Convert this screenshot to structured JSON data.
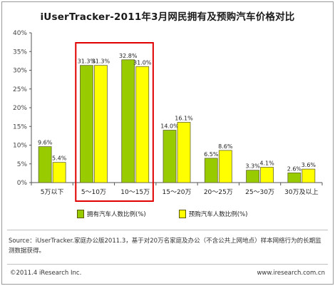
{
  "title": "iUserTracker-2011年3月网民拥有及预购汽车价格对比",
  "chart_data": {
    "type": "bar",
    "title": "iUserTracker-2011年3月网民拥有及预购汽车价格对比",
    "categories": [
      "5万以下",
      "5～10万",
      "10～15万",
      "15～20万",
      "20～25万",
      "25～30万",
      "30万及以上"
    ],
    "series": [
      {
        "name": "拥有汽车人数比例(%)",
        "color": "#99cc00",
        "values": [
          9.6,
          31.3,
          32.8,
          14.0,
          6.5,
          3.3,
          2.6
        ]
      },
      {
        "name": "预购汽车人数比例(%)",
        "color": "#ffff00",
        "values": [
          5.4,
          31.3,
          31.0,
          16.1,
          8.6,
          4.1,
          3.6
        ]
      }
    ],
    "data_labels": [
      [
        "9.6%",
        "31.3%",
        "32.8%",
        "14.0%",
        "6.5%",
        "3.3%",
        "2.6%"
      ],
      [
        "5.4%",
        "31.3%",
        "31.0%",
        "16.1%",
        "8.6%",
        "4.1%",
        "3.6%"
      ]
    ],
    "y_ticks": [
      "0%",
      "5%",
      "10%",
      "15%",
      "20%",
      "25%",
      "30%",
      "35%",
      "40%"
    ],
    "ylim": [
      0,
      40
    ],
    "grid": false,
    "legend_position": "bottom",
    "highlight": {
      "categories": [
        "5～10万",
        "10～15万"
      ],
      "color": "#e00000"
    }
  },
  "source": "Source：iUserTracker.家庭办公版2011.3，基于对20万名家庭及办公（不含公共上网地点）样本网络行为的长期监测数据获得。",
  "footer": {
    "copyright": "©2011.4 iResearch Inc.",
    "website": "www.iresearch.com.cn"
  }
}
